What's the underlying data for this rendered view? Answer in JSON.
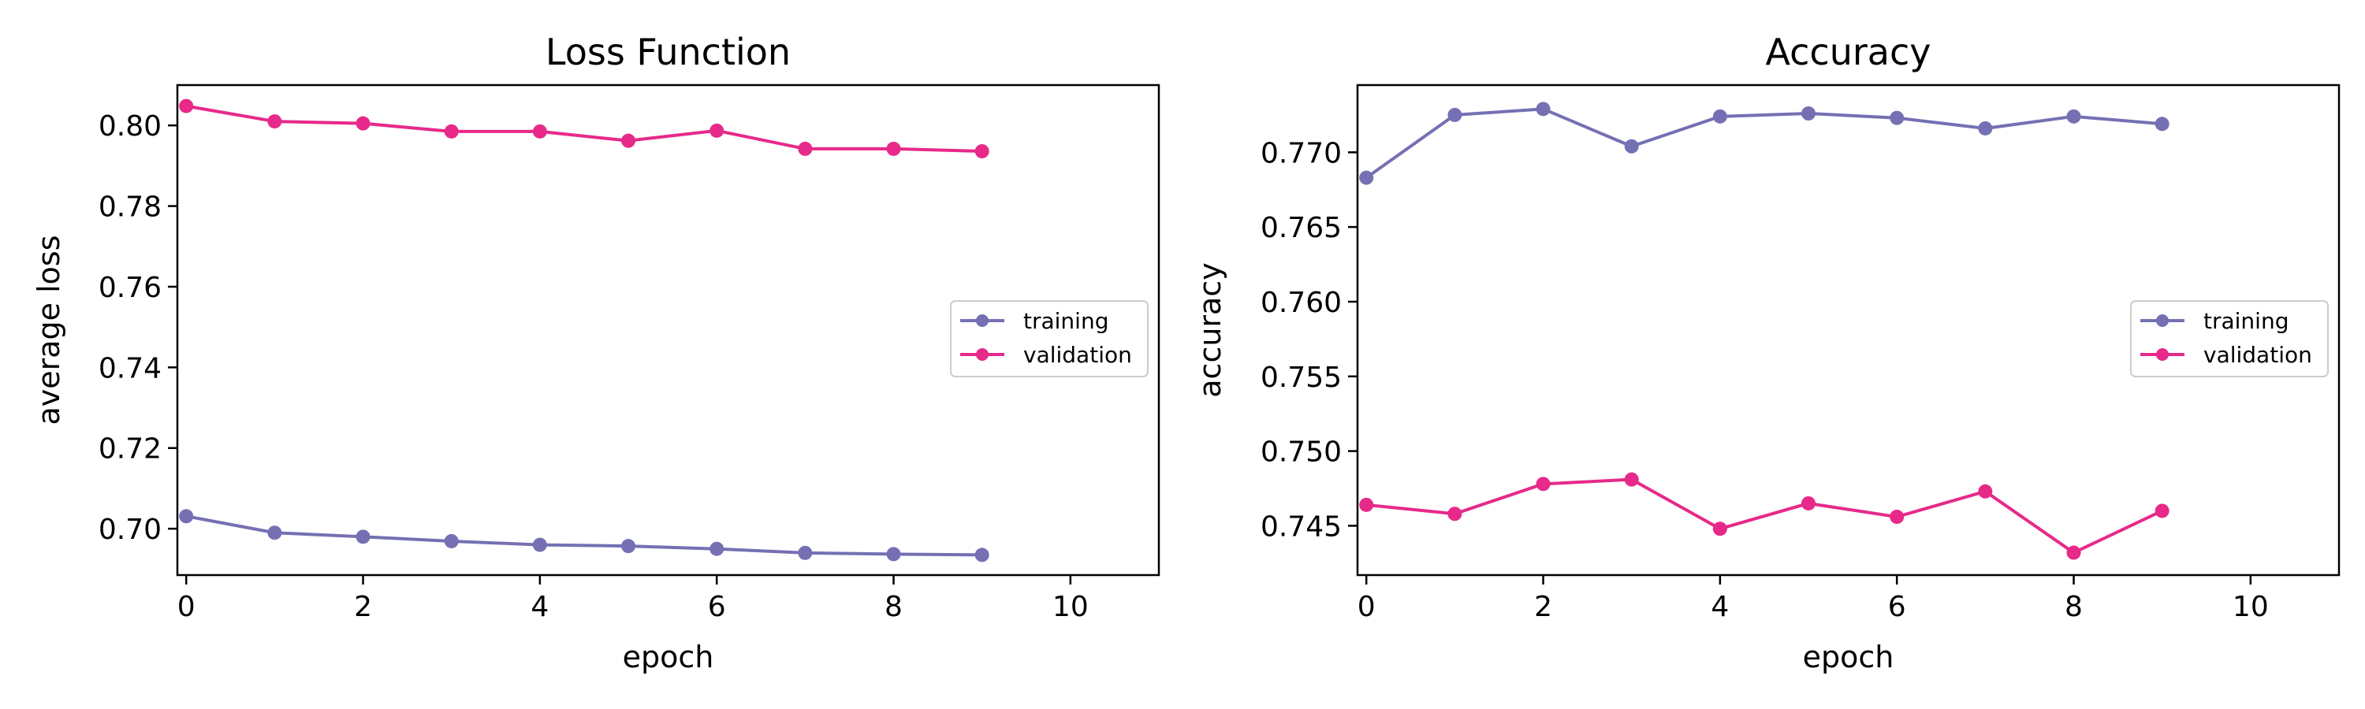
{
  "colors": {
    "training": "#7570b3",
    "validation": "#e7298a",
    "axis": "#000000",
    "background": "#ffffff",
    "legend_border": "#cccccc"
  },
  "chart_data": [
    {
      "type": "line",
      "title": "Loss Function",
      "xlabel": "epoch",
      "ylabel": "average loss",
      "xlim": [
        -0.1,
        11
      ],
      "ylim": [
        0.6885,
        0.81
      ],
      "xticks": [
        0,
        2,
        4,
        6,
        8,
        10
      ],
      "xtick_labels": [
        "0",
        "2",
        "4",
        "6",
        "8",
        "10"
      ],
      "yticks": [
        0.7,
        0.72,
        0.74,
        0.76,
        0.78,
        0.8
      ],
      "ytick_labels": [
        "0.70",
        "0.72",
        "0.74",
        "0.76",
        "0.78",
        "0.80"
      ],
      "grid": false,
      "legend_position": "center-right",
      "x": [
        0,
        1,
        2,
        3,
        4,
        5,
        6,
        7,
        8,
        9
      ],
      "series": [
        {
          "name": "training",
          "values": [
            0.7031,
            0.699,
            0.698,
            0.6969,
            0.696,
            0.6957,
            0.695,
            0.694,
            0.6937,
            0.6935
          ]
        },
        {
          "name": "validation",
          "values": [
            0.8048,
            0.801,
            0.8005,
            0.7985,
            0.7985,
            0.7962,
            0.7987,
            0.7942,
            0.7942,
            0.7936
          ]
        }
      ]
    },
    {
      "type": "line",
      "title": "Accuracy",
      "xlabel": "epoch",
      "ylabel": "accuracy",
      "xlim": [
        -0.1,
        11
      ],
      "ylim": [
        0.7417,
        0.7745
      ],
      "xticks": [
        0,
        2,
        4,
        6,
        8,
        10
      ],
      "xtick_labels": [
        "0",
        "2",
        "4",
        "6",
        "8",
        "10"
      ],
      "yticks": [
        0.745,
        0.75,
        0.755,
        0.76,
        0.765,
        0.77
      ],
      "ytick_labels": [
        "0.745",
        "0.750",
        "0.755",
        "0.760",
        "0.765",
        "0.770"
      ],
      "grid": false,
      "legend_position": "center-right",
      "x": [
        0,
        1,
        2,
        3,
        4,
        5,
        6,
        7,
        8,
        9
      ],
      "series": [
        {
          "name": "training",
          "values": [
            0.7683,
            0.7725,
            0.7729,
            0.7704,
            0.7724,
            0.7726,
            0.7723,
            0.7716,
            0.7724,
            0.7719
          ]
        },
        {
          "name": "validation",
          "values": [
            0.7464,
            0.7458,
            0.7478,
            0.7481,
            0.7448,
            0.7465,
            0.7456,
            0.7473,
            0.7432,
            0.746
          ]
        }
      ]
    }
  ]
}
